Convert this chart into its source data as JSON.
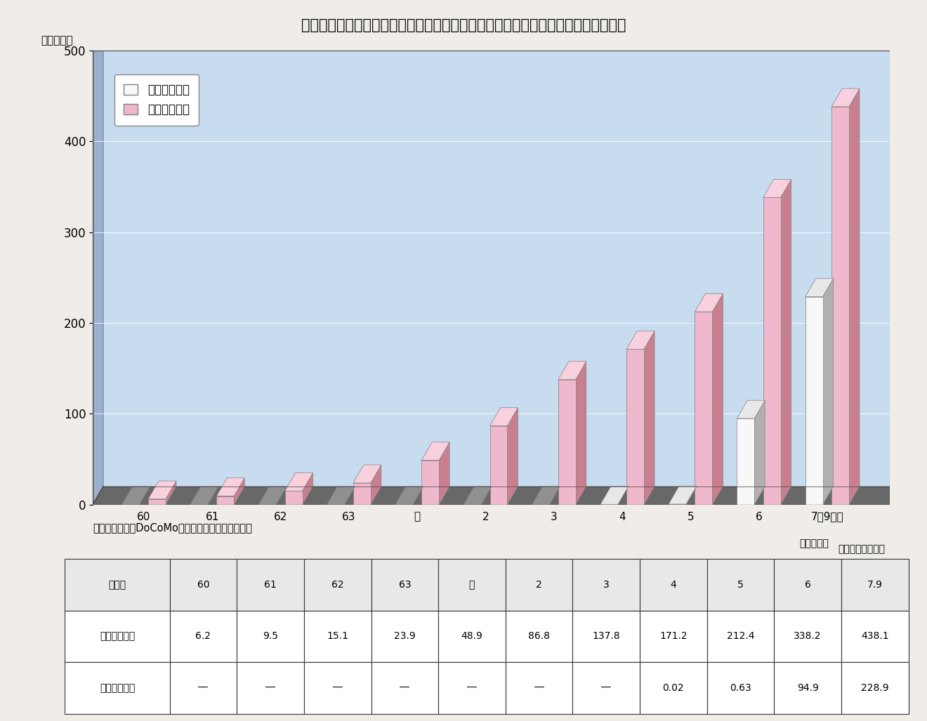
{
  "title": "第１－１－９図　携帯・自動車電話　アナログ方式、デジタル方式別契約数の推移",
  "ylabel": "（万契約）",
  "xlabel_note": "（年度末）",
  "source_note": "ＮＴＴ、ＮＴＴDoCoMo、新事業者資料により作成",
  "categories": [
    "60",
    "61",
    "62",
    "63",
    "元",
    "2",
    "3",
    "4",
    "5",
    "6",
    "7年9月末"
  ],
  "analog_values": [
    6.2,
    9.5,
    15.1,
    23.9,
    48.9,
    86.8,
    137.8,
    171.2,
    212.4,
    338.2,
    438.1
  ],
  "digital_values": [
    0,
    0,
    0,
    0,
    0,
    0,
    0,
    0.02,
    0.63,
    94.9,
    228.9
  ],
  "analog_color_face": "#f0b8cc",
  "analog_color_side": "#c88090",
  "analog_color_top": "#f8d0de",
  "digital_color_face": "#f8f8f8",
  "digital_color_side": "#b0b0b0",
  "digital_color_top": "#e8e8e8",
  "bg_color": "#b8cce4",
  "bg_wall_color": "#c8dcf0",
  "bg_side_color": "#9ab0cc",
  "floor_color": "#808080",
  "floor_top_color": "#707070",
  "ylim": [
    0,
    500
  ],
  "yticks": [
    0,
    100,
    200,
    300,
    400,
    500
  ],
  "legend_digital": "デジタル方式",
  "legend_analog": "アナログ方式",
  "table_header": [
    "年度末",
    "60",
    "61",
    "62",
    "63",
    "元",
    "2",
    "3",
    "4",
    "5",
    "6",
    "7.9"
  ],
  "table_analog": [
    "アナログ方式",
    "6.2",
    "9.5",
    "15.1",
    "23.9",
    "48.9",
    "86.8",
    "137.8",
    "171.2",
    "212.4",
    "338.2",
    "438.1"
  ],
  "table_digital": [
    "デジタル方式",
    "―",
    "―",
    "―",
    "―",
    "―",
    "―",
    "―",
    "0.02",
    "0.63",
    "94.9",
    "228.9"
  ],
  "unit_note": "（単位：万契約）"
}
